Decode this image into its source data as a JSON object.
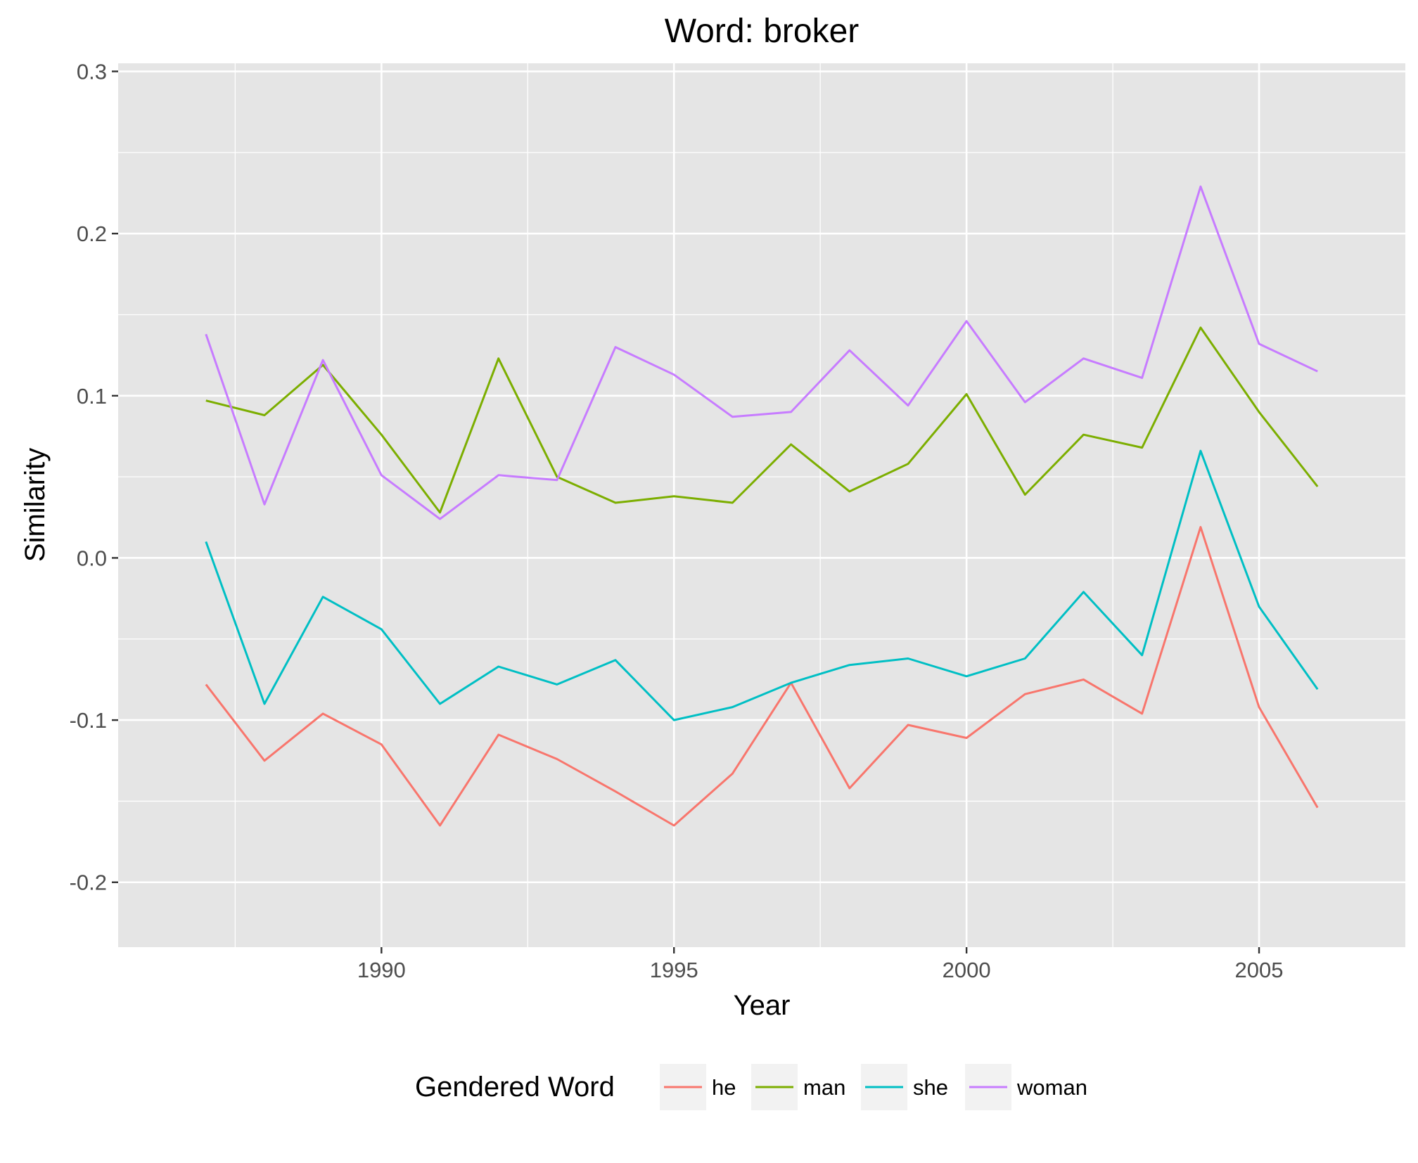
{
  "chart_data": {
    "type": "line",
    "title": "Word: broker",
    "xlabel": "Year",
    "ylabel": "Similarity",
    "x": [
      1987,
      1988,
      1989,
      1990,
      1991,
      1992,
      1993,
      1994,
      1995,
      1996,
      1997,
      1998,
      1999,
      2000,
      2001,
      2002,
      2003,
      2004,
      2005,
      2006
    ],
    "xlim": [
      1985.5,
      2007.5
    ],
    "ylim": [
      -0.24,
      0.305
    ],
    "xticks": [
      1990,
      1995,
      2000,
      2005
    ],
    "xtick_labels": [
      "1990",
      "1995",
      "2000",
      "2005"
    ],
    "yticks": [
      -0.2,
      -0.1,
      0.0,
      0.1,
      0.2,
      0.3
    ],
    "ytick_labels": [
      "-0.2",
      "-0.1",
      "0.0",
      "0.1",
      "0.2",
      "0.3"
    ],
    "grid": true,
    "legend_title": "Gendered Word",
    "legend_position": "bottom",
    "series": [
      {
        "name": "he",
        "color": "#F8766D",
        "values": [
          -0.078,
          -0.125,
          -0.096,
          -0.115,
          -0.165,
          -0.109,
          -0.124,
          -0.144,
          -0.165,
          -0.133,
          -0.077,
          -0.142,
          -0.103,
          -0.111,
          -0.084,
          -0.075,
          -0.096,
          0.019,
          -0.092,
          -0.154
        ]
      },
      {
        "name": "man",
        "color": "#7CAE00",
        "values": [
          0.097,
          0.088,
          0.119,
          0.076,
          0.028,
          0.123,
          0.05,
          0.034,
          0.038,
          0.034,
          0.07,
          0.041,
          0.058,
          0.101,
          0.039,
          0.076,
          0.068,
          0.142,
          0.09,
          0.044
        ]
      },
      {
        "name": "she",
        "color": "#00BFC4",
        "values": [
          0.01,
          -0.09,
          -0.024,
          -0.044,
          -0.09,
          -0.067,
          -0.078,
          -0.063,
          -0.1,
          -0.092,
          -0.077,
          -0.066,
          -0.062,
          -0.073,
          -0.062,
          -0.021,
          -0.06,
          0.066,
          -0.03,
          -0.081
        ]
      },
      {
        "name": "woman",
        "color": "#C77CFF",
        "values": [
          0.138,
          0.033,
          0.122,
          0.051,
          0.024,
          0.051,
          0.048,
          0.13,
          0.113,
          0.087,
          0.09,
          0.128,
          0.094,
          0.146,
          0.096,
          0.123,
          0.111,
          0.229,
          0.132,
          0.115
        ]
      }
    ]
  },
  "colors": {
    "panel_background": "#E5E5E5",
    "grid": "#FFFFFF",
    "tick": "#333333"
  }
}
